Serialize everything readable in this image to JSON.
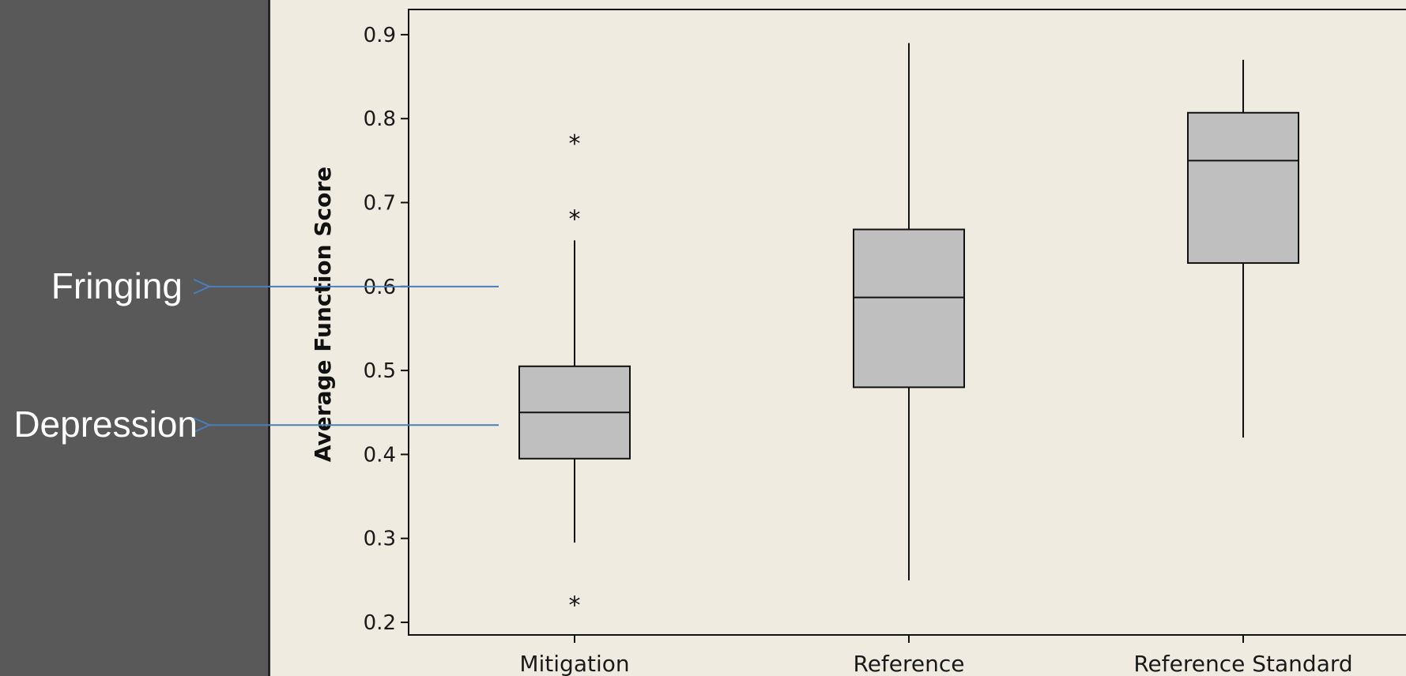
{
  "chart_data": {
    "type": "box",
    "ylabel": "Average Function Score",
    "xlabel": "",
    "ylim": [
      0.185,
      0.93
    ],
    "yticks": [
      0.9,
      0.8,
      0.7,
      0.6,
      0.5,
      0.4,
      0.3,
      0.2
    ],
    "ytick_labels": [
      "0.9",
      "0.8",
      "0.7",
      "0.6",
      "0.5",
      "0.4",
      "0.3",
      "0.2"
    ],
    "categories": [
      "Mitigation",
      "Reference",
      "Reference Standard"
    ],
    "boxes": [
      {
        "category": "Mitigation",
        "whisker_low": 0.295,
        "q1": 0.395,
        "median": 0.45,
        "q3": 0.505,
        "whisker_high": 0.655,
        "outliers": [
          0.775,
          0.685,
          0.225
        ]
      },
      {
        "category": "Reference",
        "whisker_low": 0.25,
        "q1": 0.48,
        "median": 0.587,
        "q3": 0.668,
        "whisker_high": 0.89,
        "outliers": []
      },
      {
        "category": "Reference Standard",
        "whisker_low": 0.42,
        "q1": 0.628,
        "median": 0.75,
        "q3": 0.807,
        "whisker_high": 0.87,
        "outliers": []
      }
    ],
    "annotations": [
      {
        "text": "Fringing",
        "points_to": 0.6
      },
      {
        "text": "Depression",
        "points_to": 0.435
      }
    ],
    "box_fill": "#bfbfbf",
    "arrow_color": "#4a7ebb",
    "outlier_symbol": "*"
  }
}
